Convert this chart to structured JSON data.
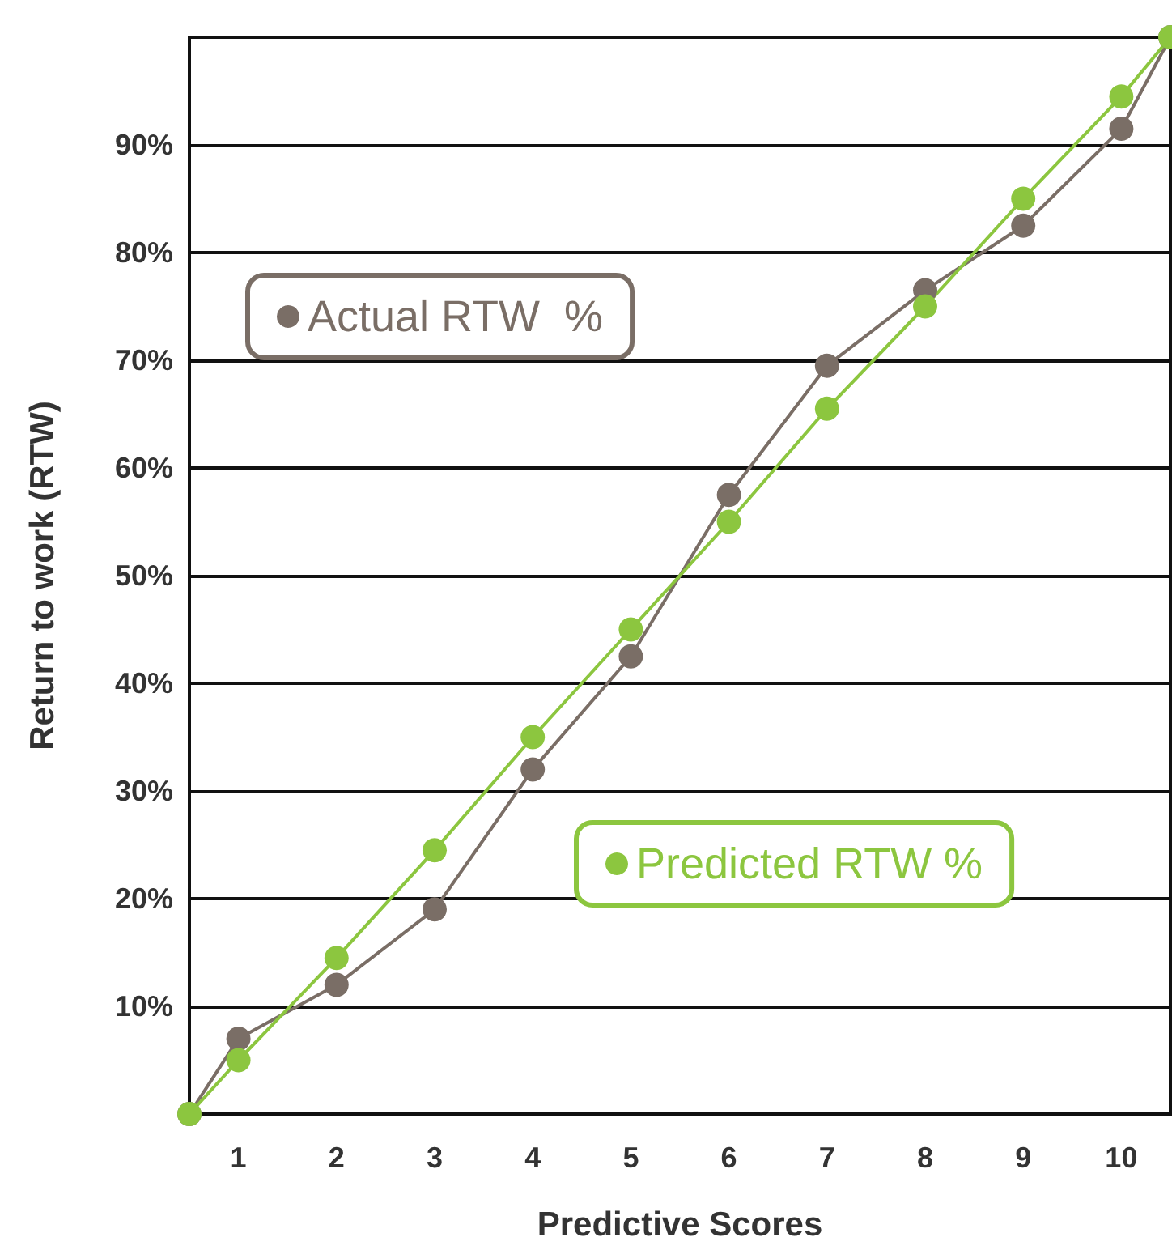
{
  "chart_data": {
    "type": "line",
    "xlabel": "Predictive Scores",
    "ylabel": "Return to work (RTW)",
    "xlim": [
      0.5,
      10.5
    ],
    "xticks": [
      1,
      2,
      3,
      4,
      5,
      6,
      7,
      8,
      9,
      10
    ],
    "ylim": [
      0,
      100
    ],
    "yticks": [
      {
        "value": 10,
        "label": "10%"
      },
      {
        "value": 20,
        "label": "20%"
      },
      {
        "value": 30,
        "label": "30%"
      },
      {
        "value": 40,
        "label": "40%"
      },
      {
        "value": 50,
        "label": "50%"
      },
      {
        "value": 60,
        "label": "60%"
      },
      {
        "value": 70,
        "label": "70%"
      },
      {
        "value": 80,
        "label": "80%"
      },
      {
        "value": 90,
        "label": "90%"
      }
    ],
    "grid": "y",
    "legend": "left",
    "marker": "circle",
    "series": [
      {
        "name": "Actual RTW  %",
        "color": "#7a6e66",
        "x": [
          0.5,
          1,
          2,
          3,
          4,
          5,
          6,
          7,
          8,
          9,
          10,
          10.5
        ],
        "values": [
          0,
          7,
          12,
          19,
          32,
          42.5,
          57.5,
          69.5,
          76.5,
          82.5,
          91.5,
          100
        ]
      },
      {
        "name": "Predicted RTW %",
        "color": "#8cc63f",
        "x": [
          0.5,
          1,
          2,
          3,
          4,
          5,
          6,
          7,
          8,
          9,
          10,
          10.5
        ],
        "values": [
          0,
          5,
          14.5,
          24.5,
          35,
          45,
          55,
          65.5,
          75,
          85,
          94.5,
          100
        ]
      }
    ]
  }
}
